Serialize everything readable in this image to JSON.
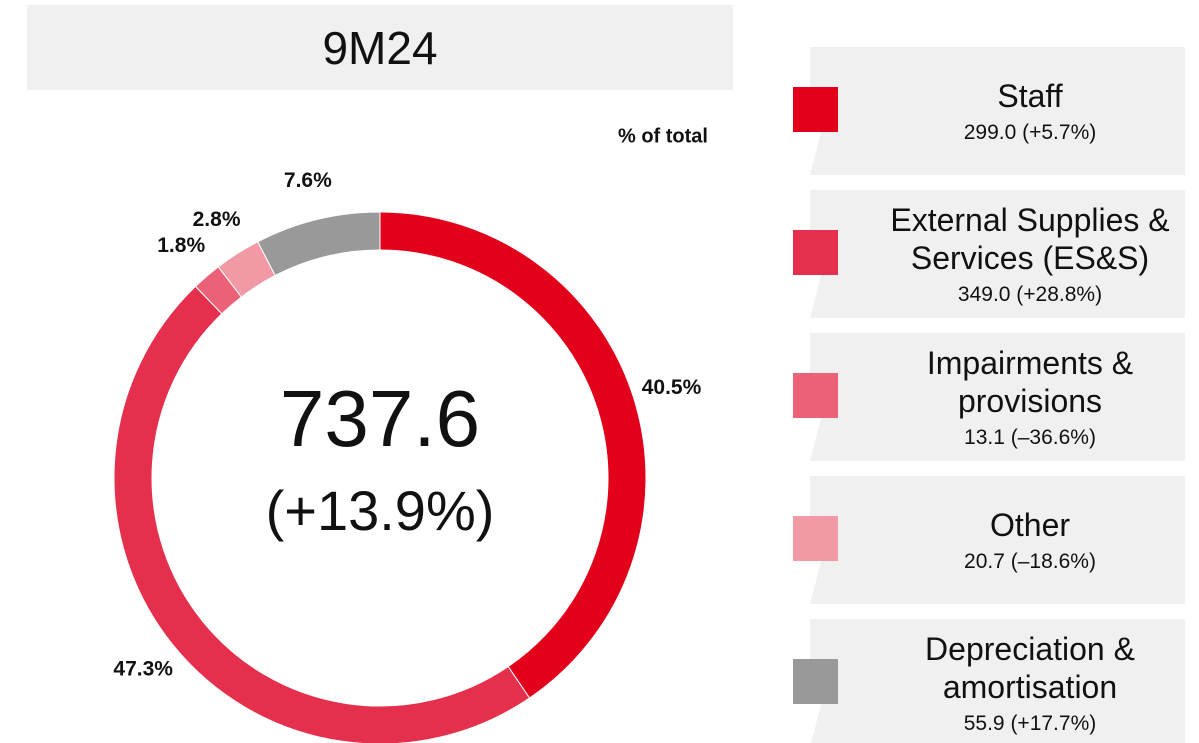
{
  "chart_data": {
    "type": "pie",
    "donut": true,
    "title": "9M24",
    "center_value": "737.6",
    "center_change": "(+13.9%)",
    "unit_label": "% of total",
    "categories": [
      "Staff",
      "External Supplies & Services (ES&S)",
      "Impairments & provisions",
      "Other",
      "Depreciation & amortisation"
    ],
    "values": [
      40.5,
      47.3,
      1.8,
      2.8,
      7.6
    ],
    "value_labels": [
      "40.5%",
      "47.3%",
      "1.8%",
      "2.8%",
      "7.6%"
    ],
    "colors": [
      "#e2001a",
      "#e5304d",
      "#eb6278",
      "#f19aa6",
      "#999999"
    ],
    "legend_details": [
      "299.0 (+5.7%)",
      "349.0 (+28.8%)",
      "13.1 (–36.6%)",
      "20.7 (–18.6%)",
      "55.9 (+17.7%)"
    ]
  }
}
